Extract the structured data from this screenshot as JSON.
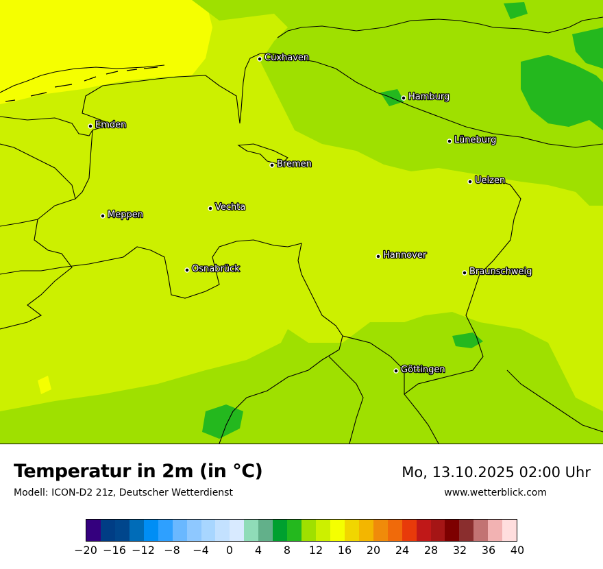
{
  "map": {
    "cities": [
      {
        "name": "Cuxhaven"
      },
      {
        "name": "Hamburg"
      },
      {
        "name": "Emden"
      },
      {
        "name": "Lüneburg"
      },
      {
        "name": "Bremen"
      },
      {
        "name": "Uelzen"
      },
      {
        "name": "Vechta"
      },
      {
        "name": "Meppen"
      },
      {
        "name": "Hannover"
      },
      {
        "name": "Osnabrück"
      },
      {
        "name": "Braunschweig"
      },
      {
        "name": "Göttingen"
      }
    ]
  },
  "header": {
    "title": "Temperatur in 2m (in °C)",
    "model": "Modell: ICON-D2 21z, Deutscher Wetterdienst",
    "datetime": "Mo, 13.10.2025 02:00 Uhr",
    "website": "www.wetterblick.com"
  },
  "legend": {
    "unit": "°C",
    "min": -20,
    "max": 40,
    "step": 2,
    "tick_labels": [
      "−20",
      "−16",
      "−12",
      "−8",
      "−4",
      "0",
      "4",
      "8",
      "12",
      "16",
      "20",
      "24",
      "28",
      "32",
      "36",
      "40"
    ],
    "colors": [
      "#34007e",
      "#003d85",
      "#00468c",
      "#006cb8",
      "#008ef5",
      "#2ea0ff",
      "#6ab8ff",
      "#8ec8ff",
      "#a8d6ff",
      "#c3e1ff",
      "#d8eaff",
      "#8fdcb8",
      "#62b08a",
      "#00a02f",
      "#24b81e",
      "#9fe000",
      "#ccf000",
      "#f5ff00",
      "#f1d600",
      "#f3b600",
      "#f08b0a",
      "#f06a0a",
      "#e83a0a",
      "#c01818",
      "#a51515",
      "#7d0000",
      "#8a2e2e",
      "#c27373",
      "#f2b2b2",
      "#ffdede"
    ]
  }
}
